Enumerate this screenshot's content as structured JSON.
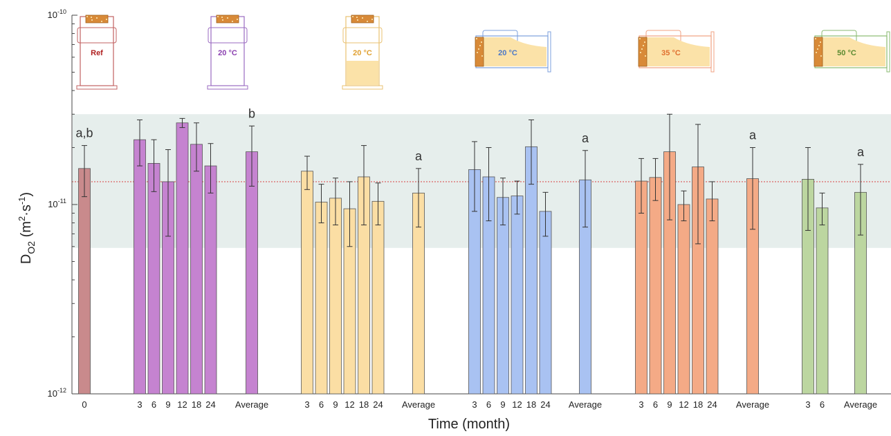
{
  "chart_data": {
    "type": "bar",
    "yscale": "log",
    "ylim": [
      1e-12,
      1e-10
    ],
    "ylabel": "D_O2 (m²·s⁻¹)",
    "ylabel_parts": {
      "main": "D",
      "sub": "O2",
      "unit_open": " (m",
      "sup1": "2",
      "dot": "·s",
      "sup2": "-1",
      "unit_close": ")"
    },
    "xlabel": "Time (month)",
    "ytick_labels": [
      {
        "base": "10",
        "exp": "-10",
        "value": 1e-10
      },
      {
        "base": "10",
        "exp": "-11",
        "value": 1e-11
      },
      {
        "base": "10",
        "exp": "-12",
        "value": 1e-12
      }
    ],
    "reference_line": 1.32e-11,
    "shaded_band": [
      5.9e-12,
      3e-11
    ],
    "colors": {
      "ref": "#c98a8c",
      "purple": "#c583d0",
      "yellow": "#fbdea4",
      "blue": "#a9c2f2",
      "orange": "#f4aa86",
      "green": "#bcd6a0",
      "band": "#e6eeec",
      "refline": "#d84040"
    },
    "groups": [
      {
        "name": "Ref",
        "color": "ref",
        "bars": [
          {
            "label": "0",
            "value": 1.55e-11,
            "err_low": 1.1e-11,
            "err_high": 2.05e-11
          }
        ],
        "average": null,
        "letter": "a,b",
        "icon": {
          "label": "Ref",
          "orientation": "upright",
          "fill": false,
          "label_color": "#b02020",
          "outline": "#c06060"
        }
      },
      {
        "name": "Purple",
        "color": "purple",
        "bars": [
          {
            "label": "3",
            "value": 2.2e-11,
            "err_low": 1.6e-11,
            "err_high": 2.8e-11
          },
          {
            "label": "6",
            "value": 1.65e-11,
            "err_low": 1.17e-11,
            "err_high": 2.2e-11
          },
          {
            "label": "9",
            "value": 1.32e-11,
            "err_low": 6.8e-12,
            "err_high": 1.95e-11
          },
          {
            "label": "12",
            "value": 2.7e-11,
            "err_low": 2.55e-11,
            "err_high": 2.85e-11
          },
          {
            "label": "18",
            "value": 2.08e-11,
            "err_low": 1.5e-11,
            "err_high": 2.7e-11
          },
          {
            "label": "24",
            "value": 1.6e-11,
            "err_low": 1.15e-11,
            "err_high": 2.1e-11
          }
        ],
        "average": {
          "label": "Average",
          "value": 1.9e-11,
          "err_low": 1.25e-11,
          "err_high": 2.6e-11
        },
        "letter": "b",
        "icon": {
          "label": "20 °C",
          "orientation": "upright",
          "fill": false,
          "label_color": "#8a3fb0",
          "outline": "#9a6ac0"
        }
      },
      {
        "name": "Yellow",
        "color": "yellow",
        "bars": [
          {
            "label": "3",
            "value": 1.5e-11,
            "err_low": 1.2e-11,
            "err_high": 1.8e-11
          },
          {
            "label": "6",
            "value": 1.03e-11,
            "err_low": 8e-12,
            "err_high": 1.28e-11
          },
          {
            "label": "9",
            "value": 1.08e-11,
            "err_low": 7.8e-12,
            "err_high": 1.38e-11
          },
          {
            "label": "12",
            "value": 9.5e-12,
            "err_low": 6e-12,
            "err_high": 1.32e-11
          },
          {
            "label": "18",
            "value": 1.4e-11,
            "err_low": 7.8e-12,
            "err_high": 2.05e-11
          },
          {
            "label": "24",
            "value": 1.04e-11,
            "err_low": 7.8e-12,
            "err_high": 1.3e-11
          }
        ],
        "average": {
          "label": "Average",
          "value": 1.15e-11,
          "err_low": 7.6e-12,
          "err_high": 1.55e-11
        },
        "letter": "a",
        "icon": {
          "label": "20 °C",
          "orientation": "upright",
          "fill": true,
          "label_color": "#e0a030",
          "outline": "#e8c070"
        }
      },
      {
        "name": "Blue",
        "color": "blue",
        "bars": [
          {
            "label": "3",
            "value": 1.53e-11,
            "err_low": 9.2e-12,
            "err_high": 2.15e-11
          },
          {
            "label": "6",
            "value": 1.4e-11,
            "err_low": 8.2e-12,
            "err_high": 2e-11
          },
          {
            "label": "9",
            "value": 1.09e-11,
            "err_low": 7.8e-12,
            "err_high": 1.38e-11
          },
          {
            "label": "12",
            "value": 1.11e-11,
            "err_low": 8.9e-12,
            "err_high": 1.33e-11
          },
          {
            "label": "18",
            "value": 2.02e-11,
            "err_low": 1.28e-11,
            "err_high": 2.8e-11
          },
          {
            "label": "24",
            "value": 9.2e-12,
            "err_low": 6.8e-12,
            "err_high": 1.16e-11
          }
        ],
        "average": {
          "label": "Average",
          "value": 1.35e-11,
          "err_low": 7.6e-12,
          "err_high": 1.93e-11
        },
        "letter": "a",
        "icon": {
          "label": "20 °C",
          "orientation": "sideways",
          "fill": true,
          "label_color": "#4a78c8",
          "outline": "#7b9fdc"
        }
      },
      {
        "name": "Orange",
        "color": "orange",
        "bars": [
          {
            "label": "3",
            "value": 1.33e-11,
            "err_low": 9e-12,
            "err_high": 1.75e-11
          },
          {
            "label": "6",
            "value": 1.39e-11,
            "err_low": 1.05e-11,
            "err_high": 1.75e-11
          },
          {
            "label": "9",
            "value": 1.9e-11,
            "err_low": 8.3e-12,
            "err_high": 3e-11
          },
          {
            "label": "12",
            "value": 1e-11,
            "err_low": 8.2e-12,
            "err_high": 1.18e-11
          },
          {
            "label": "18",
            "value": 1.58e-11,
            "err_low": 6.2e-12,
            "err_high": 2.65e-11
          },
          {
            "label": "24",
            "value": 1.07e-11,
            "err_low": 8.2e-12,
            "err_high": 1.32e-11
          }
        ],
        "average": {
          "label": "Average",
          "value": 1.37e-11,
          "err_low": 7.4e-12,
          "err_high": 2e-11
        },
        "letter": "a",
        "icon": {
          "label": "35 °C",
          "orientation": "sideways",
          "fill": true,
          "label_color": "#e07030",
          "outline": "#f0a080"
        }
      },
      {
        "name": "Green",
        "color": "green",
        "bars": [
          {
            "label": "3",
            "value": 1.36e-11,
            "err_low": 7.3e-12,
            "err_high": 2e-11
          },
          {
            "label": "6",
            "value": 9.6e-12,
            "err_low": 7.8e-12,
            "err_high": 1.15e-11
          }
        ],
        "average": {
          "label": "Average",
          "value": 1.16e-11,
          "err_low": 6.9e-12,
          "err_high": 1.63e-11
        },
        "letter": "a",
        "icon": {
          "label": "50 °C",
          "orientation": "sideways",
          "fill": true,
          "label_color": "#5a8a30",
          "outline": "#8aba70"
        }
      }
    ]
  }
}
